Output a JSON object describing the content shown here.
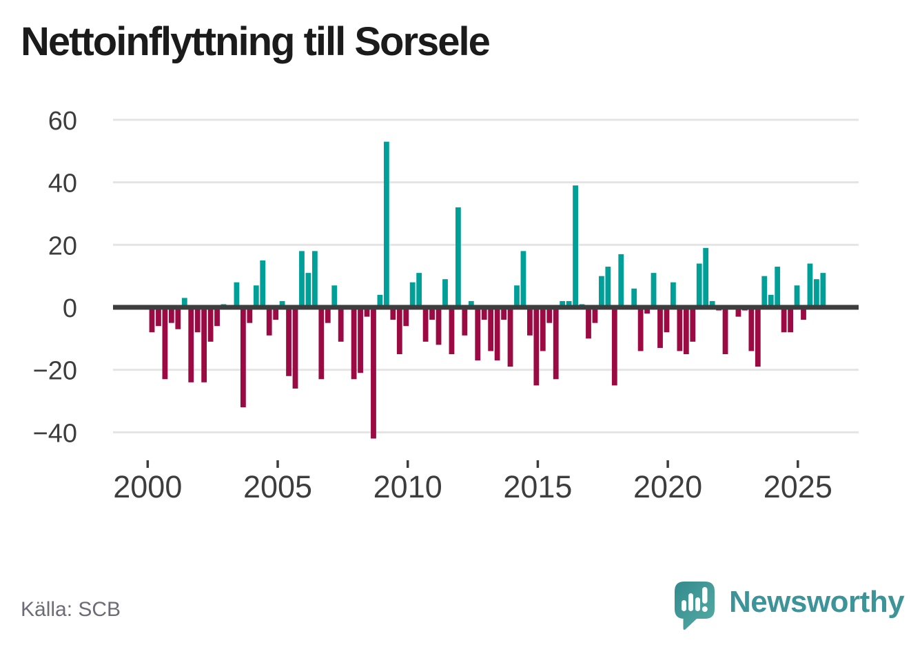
{
  "title": "Nettoinflyttning till Sorsele",
  "source": "Källa: SCB",
  "branding": {
    "name": "Newsworthy",
    "wordmark_color": "#3c9499",
    "icon_color_dark": "#338a8d",
    "icon_color_light": "#55aca4"
  },
  "chart_data": {
    "type": "bar",
    "title": "Nettoinflyttning till Sorsele",
    "frequency": "quarterly",
    "x_range": [
      "2000 Q1",
      "2025 Q4"
    ],
    "categories": [
      "2000 Q1",
      "2000 Q2",
      "2000 Q3",
      "2000 Q4",
      "2001 Q1",
      "2001 Q2",
      "2001 Q3",
      "2001 Q4",
      "2002 Q1",
      "2002 Q2",
      "2002 Q3",
      "2002 Q4",
      "2003 Q1",
      "2003 Q2",
      "2003 Q3",
      "2003 Q4",
      "2004 Q1",
      "2004 Q2",
      "2004 Q3",
      "2004 Q4",
      "2005 Q1",
      "2005 Q2",
      "2005 Q3",
      "2005 Q4",
      "2006 Q1",
      "2006 Q2",
      "2006 Q3",
      "2006 Q4",
      "2007 Q1",
      "2007 Q2",
      "2007 Q3",
      "2007 Q4",
      "2008 Q1",
      "2008 Q2",
      "2008 Q3",
      "2008 Q4",
      "2009 Q1",
      "2009 Q2",
      "2009 Q3",
      "2009 Q4",
      "2010 Q1",
      "2010 Q2",
      "2010 Q3",
      "2010 Q4",
      "2011 Q1",
      "2011 Q2",
      "2011 Q3",
      "2011 Q4",
      "2012 Q1",
      "2012 Q2",
      "2012 Q3",
      "2012 Q4",
      "2013 Q1",
      "2013 Q2",
      "2013 Q3",
      "2013 Q4",
      "2014 Q1",
      "2014 Q2",
      "2014 Q3",
      "2014 Q4",
      "2015 Q1",
      "2015 Q2",
      "2015 Q3",
      "2015 Q4",
      "2016 Q1",
      "2016 Q2",
      "2016 Q3",
      "2016 Q4",
      "2017 Q1",
      "2017 Q2",
      "2017 Q3",
      "2017 Q4",
      "2018 Q1",
      "2018 Q2",
      "2018 Q3",
      "2018 Q4",
      "2019 Q1",
      "2019 Q2",
      "2019 Q3",
      "2019 Q4",
      "2020 Q1",
      "2020 Q2",
      "2020 Q3",
      "2020 Q4",
      "2021 Q1",
      "2021 Q2",
      "2021 Q3",
      "2021 Q4",
      "2022 Q1",
      "2022 Q2",
      "2022 Q3",
      "2022 Q4",
      "2023 Q1",
      "2023 Q2",
      "2023 Q3",
      "2023 Q4",
      "2024 Q1",
      "2024 Q2",
      "2024 Q3",
      "2024 Q4",
      "2025 Q1",
      "2025 Q2",
      "2025 Q3",
      "2025 Q4"
    ],
    "values": [
      -8,
      -6,
      -23,
      -5,
      -7,
      3,
      -24,
      -8,
      -24,
      -11,
      -6,
      1,
      0,
      8,
      -32,
      -5,
      7,
      15,
      -9,
      -4,
      2,
      -22,
      -26,
      18,
      11,
      18,
      -23,
      -5,
      7,
      -11,
      0,
      -23,
      -21,
      -3,
      -42,
      4,
      53,
      -4,
      -15,
      -6,
      8,
      11,
      -11,
      -4,
      -12,
      9,
      -15,
      32,
      -9,
      2,
      -17,
      -4,
      -14,
      -17,
      -4,
      -19,
      7,
      18,
      -9,
      -25,
      -14,
      -5,
      -23,
      2,
      2,
      39,
      1,
      -10,
      -5,
      10,
      13,
      -25,
      17,
      0,
      6,
      -14,
      -2,
      11,
      -13,
      -8,
      8,
      -14,
      -15,
      -11,
      14,
      19,
      2,
      -1,
      -15,
      0,
      -3,
      -1,
      -14,
      -19,
      10,
      4,
      13,
      -8,
      -8,
      7,
      -4,
      14,
      9,
      11
    ],
    "ylim": [
      -45,
      62
    ],
    "yticks": [
      60,
      40,
      20,
      0,
      -20,
      -40
    ],
    "ytick_labels": [
      "60",
      "40",
      "20",
      "0",
      "−20",
      "−40"
    ],
    "xticks": [
      2000,
      2005,
      2010,
      2015,
      2020,
      2025
    ],
    "xtick_labels": [
      "2000",
      "2005",
      "2010",
      "2015",
      "2020",
      "2025"
    ],
    "grid": true,
    "legend": "none",
    "positive_color": "#00a099",
    "negative_color": "#9b0a42",
    "axis_color": "#3d3d3d",
    "grid_color": "#e4e4e4",
    "tick_text_color": "#3d3d3d"
  }
}
